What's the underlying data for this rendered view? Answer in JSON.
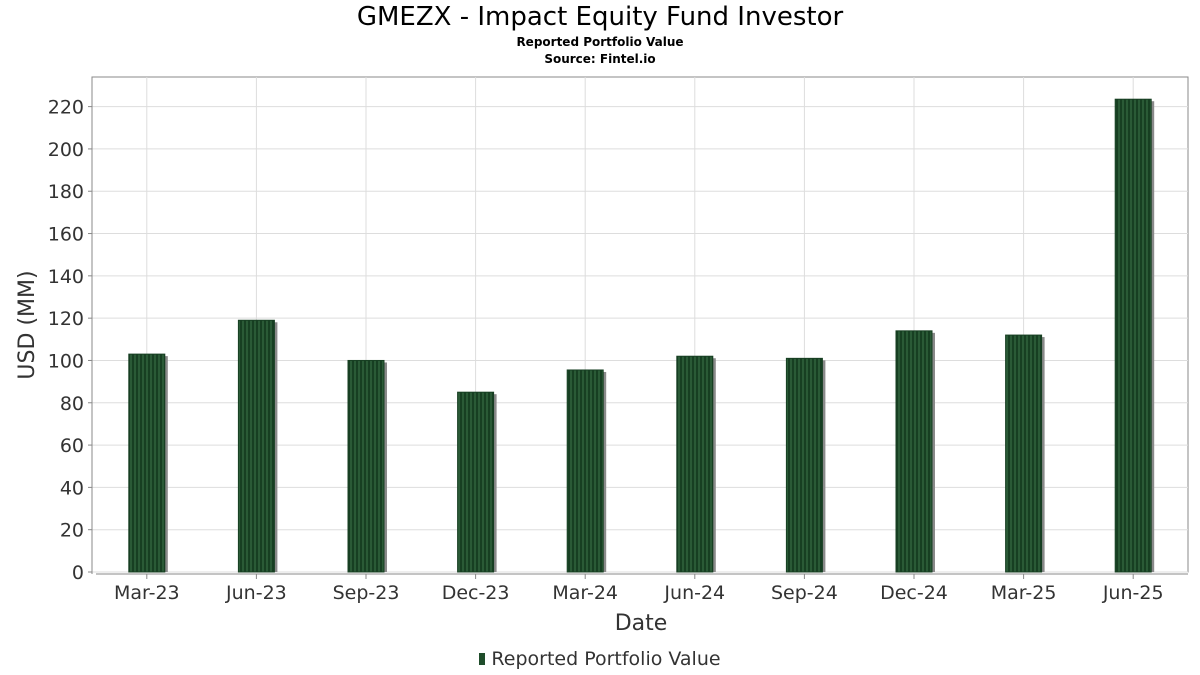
{
  "chart_data": {
    "type": "bar",
    "title": "GMEZX - Impact Equity Fund Investor",
    "subtitle": "Reported Portfolio Value",
    "source": "Source: Fintel.io",
    "xlabel": "Date",
    "ylabel": "USD (MM)",
    "categories": [
      "Mar-23",
      "Jun-23",
      "Sep-23",
      "Dec-23",
      "Mar-24",
      "Jun-24",
      "Sep-24",
      "Dec-24",
      "Mar-25",
      "Jun-25"
    ],
    "series": [
      {
        "name": "Reported Portfolio Value",
        "values": [
          103,
          119,
          100,
          85,
          95.5,
          102,
          101,
          114,
          112,
          223.5
        ]
      }
    ],
    "ylim": [
      0,
      234
    ],
    "yticks": [
      0,
      20,
      40,
      60,
      80,
      100,
      120,
      140,
      160,
      180,
      200,
      220
    ],
    "grid": true,
    "legend_position": "bottom-center",
    "bar_color": "#1f4d2b",
    "shadow_color": "#8a8a8a"
  }
}
